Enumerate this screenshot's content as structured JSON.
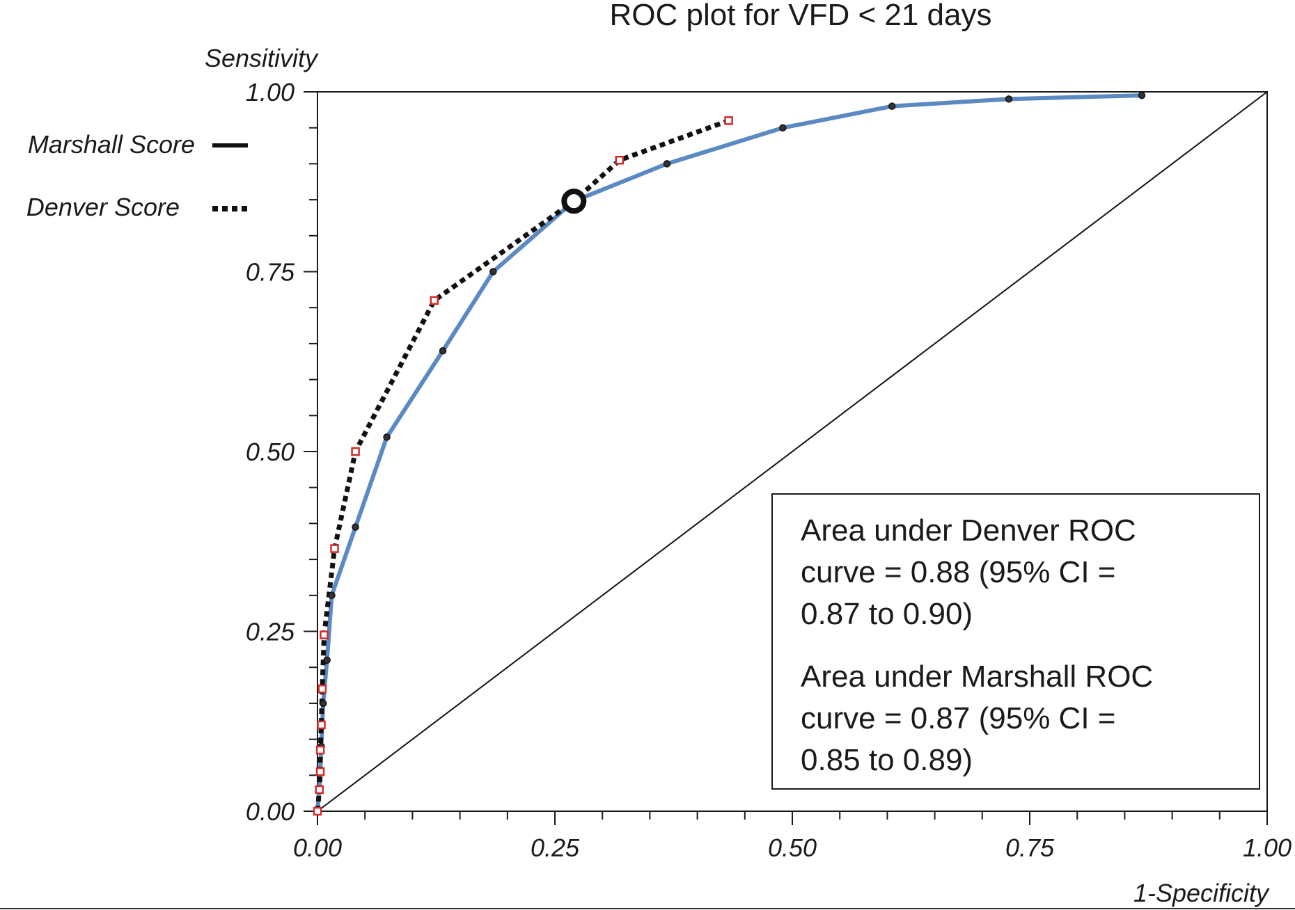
{
  "chart_data": {
    "type": "line",
    "title": "ROC plot for VFD < 21 days",
    "xlabel": "1-Specificity",
    "ylabel": "Sensitivity",
    "xlim": [
      0,
      1
    ],
    "ylim": [
      0,
      1
    ],
    "x_ticks": [
      "0.00",
      "0.25",
      "0.50",
      "0.75",
      "1.00"
    ],
    "y_ticks": [
      "0.00",
      "0.25",
      "0.50",
      "0.75",
      "1.00"
    ],
    "grid": false,
    "legend_position": "top-left, outside the plot",
    "series": [
      {
        "name": "Marshall Score",
        "style": "solid",
        "color": "#5b8ac3",
        "points": [
          [
            0,
            0
          ],
          [
            0.002,
            0.03
          ],
          [
            0.004,
            0.09
          ],
          [
            0.006,
            0.15
          ],
          [
            0.01,
            0.21
          ],
          [
            0.015,
            0.3
          ],
          [
            0.04,
            0.395
          ],
          [
            0.073,
            0.52
          ],
          [
            0.132,
            0.64
          ],
          [
            0.185,
            0.75
          ],
          [
            0.27,
            0.848
          ],
          [
            0.368,
            0.9
          ],
          [
            0.49,
            0.95
          ],
          [
            0.605,
            0.98
          ],
          [
            0.728,
            0.99
          ],
          [
            0.868,
            0.995
          ]
        ]
      },
      {
        "name": "Denver Score",
        "style": "dotted",
        "color": "#111111",
        "marker_color": "#d42a2a",
        "points": [
          [
            0,
            0
          ],
          [
            0.002,
            0.03
          ],
          [
            0.003,
            0.055
          ],
          [
            0.003,
            0.085
          ],
          [
            0.004,
            0.12
          ],
          [
            0.005,
            0.17
          ],
          [
            0.007,
            0.245
          ],
          [
            0.018,
            0.365
          ],
          [
            0.04,
            0.5
          ],
          [
            0.123,
            0.71
          ],
          [
            0.27,
            0.848
          ],
          [
            0.318,
            0.905
          ],
          [
            0.433,
            0.96
          ]
        ]
      },
      {
        "name": "",
        "style": "thin solid",
        "color": "#111111",
        "points": [
          [
            0,
            0
          ],
          [
            1,
            1
          ]
        ]
      }
    ],
    "highlight_point": [
      0.27,
      0.848
    ],
    "annotations": [
      [
        "Area under Denver ROC",
        "curve = 0.88 (95% CI =",
        "0.87 to 0.90)"
      ],
      [
        "Area under Marshall ROC",
        "curve = 0.87 (95% CI =",
        "0.85 to 0.89)"
      ]
    ]
  }
}
